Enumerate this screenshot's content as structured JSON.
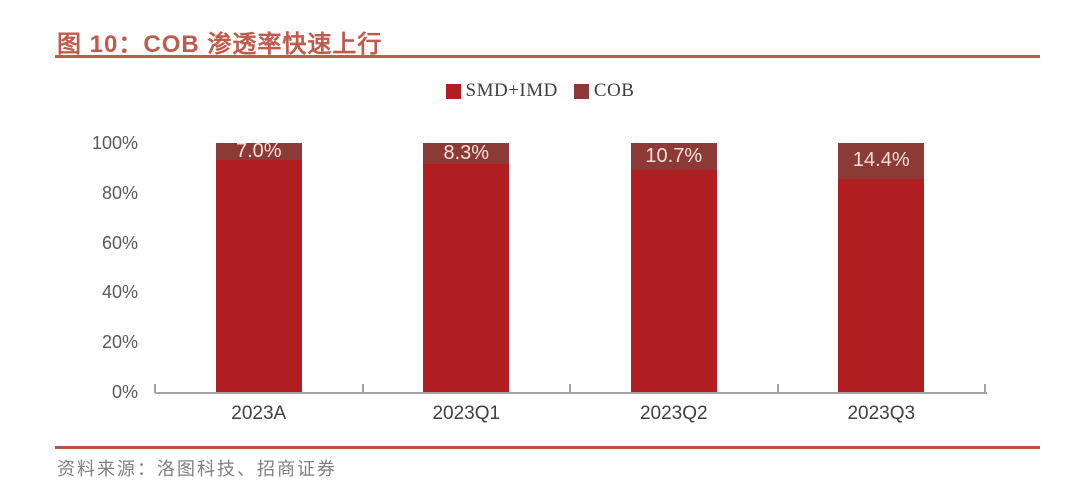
{
  "header": {
    "title": "图 10：COB 渗透率快速上行"
  },
  "footer": {
    "source": "资料来源：洛图科技、招商证券"
  },
  "colors": {
    "accent_rule": "#BF5B4D",
    "footer_rule": "#B5543F",
    "smd_red": "#B01E22",
    "cob_dark": "#8B3A35",
    "axis_gray": "#A3A3A3",
    "ytick_text": "#595959",
    "xtick_text": "#404040",
    "data_label_text": "#F0DFDB",
    "source_text": "#7F7F7F",
    "title_text": "#BF5B4D"
  },
  "chart_data": {
    "type": "bar",
    "stacked": true,
    "title": "图 10：COB 渗透率快速上行",
    "categories": [
      "2023A",
      "2023Q1",
      "2023Q2",
      "2023Q3"
    ],
    "series": [
      {
        "name": "SMD+IMD",
        "color": "#B01E22",
        "values": [
          93.0,
          91.7,
          89.3,
          85.6
        ]
      },
      {
        "name": "COB",
        "color": "#8B3A35",
        "values": [
          7.0,
          8.3,
          10.7,
          14.4
        ],
        "labels": [
          "7.0%",
          "8.3%",
          "10.7%",
          "14.4%"
        ]
      }
    ],
    "xlabel": "",
    "ylabel": "",
    "ylim": [
      0,
      100
    ],
    "ytick_values": [
      0,
      20,
      40,
      60,
      80,
      100
    ],
    "yticks": [
      "0%",
      "20%",
      "40%",
      "60%",
      "80%",
      "100%"
    ],
    "grid": false,
    "legend_position": "top-center",
    "data_labels_on": "COB"
  }
}
